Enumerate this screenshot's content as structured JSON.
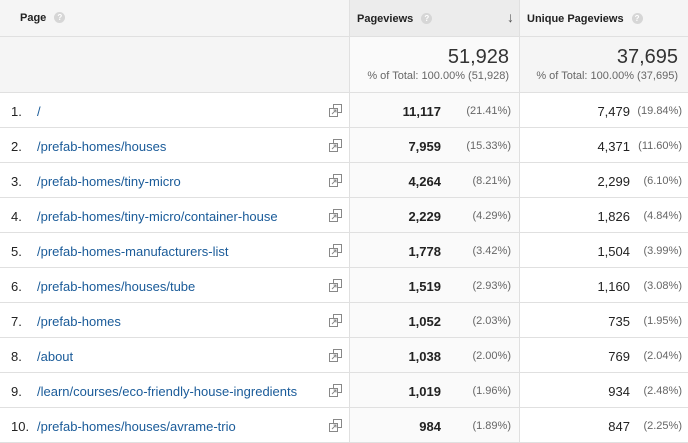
{
  "header": {
    "page_label": "Page",
    "pageviews_label": "Pageviews",
    "unique_label": "Unique Pageviews",
    "help_glyph": "?",
    "sort_glyph": "↓"
  },
  "totals": {
    "pageviews": "51,928",
    "pageviews_pct": "% of Total: 100.00% (51,928)",
    "unique": "37,695",
    "unique_pct": "% of Total: 100.00% (37,695)"
  },
  "rows": [
    {
      "index": "1.",
      "path": "/",
      "pageviews": "11,117",
      "pageviews_pct": "(21.41%)",
      "unique": "7,479",
      "unique_pct": "(19.84%)"
    },
    {
      "index": "2.",
      "path": "/prefab-homes/houses",
      "pageviews": "7,959",
      "pageviews_pct": "(15.33%)",
      "unique": "4,371",
      "unique_pct": "(11.60%)"
    },
    {
      "index": "3.",
      "path": "/prefab-homes/tiny-micro",
      "pageviews": "4,264",
      "pageviews_pct": "(8.21%)",
      "unique": "2,299",
      "unique_pct": "(6.10%)"
    },
    {
      "index": "4.",
      "path": "/prefab-homes/tiny-micro/container-house",
      "pageviews": "2,229",
      "pageviews_pct": "(4.29%)",
      "unique": "1,826",
      "unique_pct": "(4.84%)"
    },
    {
      "index": "5.",
      "path": "/prefab-homes-manufacturers-list",
      "pageviews": "1,778",
      "pageviews_pct": "(3.42%)",
      "unique": "1,504",
      "unique_pct": "(3.99%)"
    },
    {
      "index": "6.",
      "path": "/prefab-homes/houses/tube",
      "pageviews": "1,519",
      "pageviews_pct": "(2.93%)",
      "unique": "1,160",
      "unique_pct": "(3.08%)"
    },
    {
      "index": "7.",
      "path": "/prefab-homes",
      "pageviews": "1,052",
      "pageviews_pct": "(2.03%)",
      "unique": "735",
      "unique_pct": "(1.95%)"
    },
    {
      "index": "8.",
      "path": "/about",
      "pageviews": "1,038",
      "pageviews_pct": "(2.00%)",
      "unique": "769",
      "unique_pct": "(2.04%)"
    },
    {
      "index": "9.",
      "path": "/learn/courses/eco-friendly-house-ingredients",
      "pageviews": "1,019",
      "pageviews_pct": "(1.96%)",
      "unique": "934",
      "unique_pct": "(2.48%)"
    },
    {
      "index": "10.",
      "path": "/prefab-homes/houses/avrame-trio",
      "pageviews": "984",
      "pageviews_pct": "(1.89%)",
      "unique": "847",
      "unique_pct": "(2.25%)"
    }
  ],
  "icons": {
    "help": "help-icon",
    "sort": "sort-descending-icon",
    "external_link": "external-link-icon"
  },
  "colors": {
    "link": "#1a5b99",
    "header_bg": "#f5f5f5",
    "border": "#e0e0e0"
  }
}
